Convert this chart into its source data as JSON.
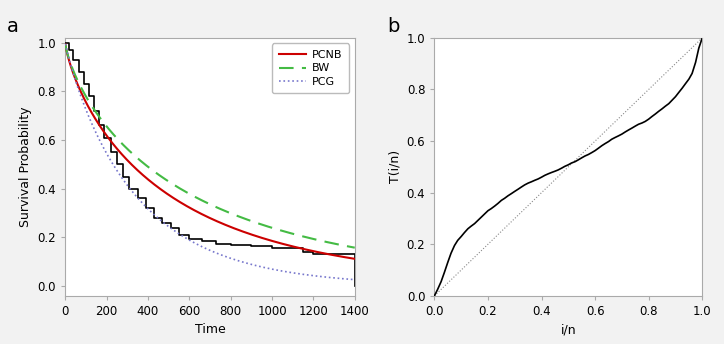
{
  "panel_a_label": "a",
  "panel_b_label": "b",
  "xlabel_a": "Time",
  "ylabel_a": "Survival Probability",
  "xlabel_b": "i/n",
  "ylabel_b": "T(i/n)",
  "xlim_a": [
    0,
    1400
  ],
  "ylim_a": [
    -0.04,
    1.02
  ],
  "xlim_b": [
    0.0,
    1.0
  ],
  "ylim_b": [
    0.0,
    1.0
  ],
  "xticks_a": [
    0,
    200,
    400,
    600,
    800,
    1000,
    1200,
    1400
  ],
  "yticks_a": [
    0.0,
    0.2,
    0.4,
    0.6,
    0.8,
    1.0
  ],
  "xticks_b": [
    0.0,
    0.2,
    0.4,
    0.6,
    0.8,
    1.0
  ],
  "yticks_b": [
    0.0,
    0.2,
    0.4,
    0.6,
    0.8,
    1.0
  ],
  "legend_labels": [
    "PCNB",
    "BW",
    "PCG"
  ],
  "pcnb_color": "#cc0000",
  "bw_color": "#44bb44",
  "pcg_color": "#7777cc",
  "km_color": "#000000",
  "bg_color": "#f2f2f2",
  "plot_bg": "#ffffff",
  "km_times": [
    0,
    20,
    40,
    65,
    90,
    115,
    140,
    165,
    190,
    220,
    250,
    280,
    310,
    350,
    390,
    430,
    470,
    510,
    550,
    600,
    660,
    730,
    800,
    900,
    1000,
    1100,
    1150,
    1200,
    1350,
    1400,
    1400
  ],
  "km_surv": [
    1.0,
    0.97,
    0.93,
    0.88,
    0.83,
    0.78,
    0.72,
    0.66,
    0.61,
    0.55,
    0.5,
    0.45,
    0.4,
    0.36,
    0.32,
    0.28,
    0.26,
    0.24,
    0.21,
    0.195,
    0.185,
    0.175,
    0.17,
    0.165,
    0.155,
    0.155,
    0.14,
    0.13,
    0.13,
    0.13,
    0.0
  ],
  "ttt_x": [
    0.0,
    0.012,
    0.025,
    0.037,
    0.05,
    0.062,
    0.075,
    0.087,
    0.1,
    0.112,
    0.125,
    0.137,
    0.15,
    0.162,
    0.175,
    0.187,
    0.2,
    0.212,
    0.225,
    0.237,
    0.25,
    0.262,
    0.275,
    0.287,
    0.3,
    0.312,
    0.325,
    0.337,
    0.35,
    0.362,
    0.375,
    0.387,
    0.4,
    0.412,
    0.425,
    0.437,
    0.45,
    0.462,
    0.475,
    0.487,
    0.5,
    0.512,
    0.525,
    0.537,
    0.55,
    0.562,
    0.575,
    0.587,
    0.6,
    0.612,
    0.625,
    0.637,
    0.65,
    0.662,
    0.675,
    0.687,
    0.7,
    0.712,
    0.725,
    0.737,
    0.75,
    0.762,
    0.775,
    0.787,
    0.8,
    0.812,
    0.825,
    0.837,
    0.85,
    0.862,
    0.875,
    0.887,
    0.9,
    0.912,
    0.925,
    0.937,
    0.95,
    0.962,
    0.975,
    0.987,
    1.0
  ],
  "ttt_y": [
    0.0,
    0.025,
    0.055,
    0.09,
    0.13,
    0.165,
    0.195,
    0.215,
    0.23,
    0.245,
    0.26,
    0.27,
    0.28,
    0.292,
    0.305,
    0.317,
    0.33,
    0.338,
    0.348,
    0.358,
    0.37,
    0.378,
    0.388,
    0.396,
    0.405,
    0.413,
    0.422,
    0.43,
    0.437,
    0.442,
    0.448,
    0.453,
    0.46,
    0.467,
    0.473,
    0.478,
    0.483,
    0.488,
    0.495,
    0.502,
    0.508,
    0.515,
    0.52,
    0.527,
    0.535,
    0.542,
    0.548,
    0.555,
    0.563,
    0.572,
    0.582,
    0.59,
    0.598,
    0.607,
    0.614,
    0.62,
    0.627,
    0.635,
    0.643,
    0.65,
    0.658,
    0.665,
    0.67,
    0.676,
    0.685,
    0.695,
    0.705,
    0.715,
    0.725,
    0.735,
    0.745,
    0.758,
    0.772,
    0.788,
    0.805,
    0.822,
    0.84,
    0.862,
    0.905,
    0.96,
    1.0
  ]
}
